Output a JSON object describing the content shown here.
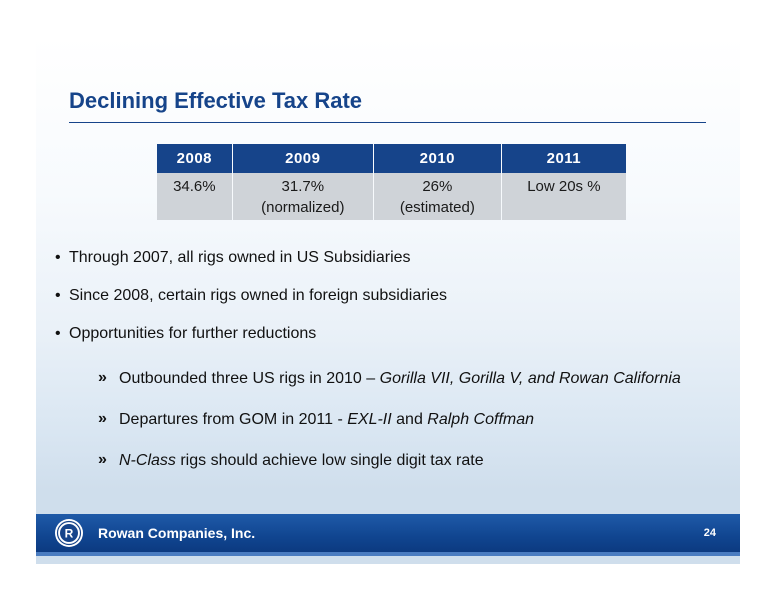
{
  "slide": {
    "title": "Declining Effective Tax Rate"
  },
  "table": {
    "headers": [
      "2008",
      "2009",
      "2010",
      "2011"
    ],
    "cells": [
      [
        "34.6%",
        ""
      ],
      [
        "31.7%",
        "(normalized)"
      ],
      [
        "26%",
        "(estimated)"
      ],
      [
        "Low 20s %",
        ""
      ]
    ]
  },
  "bullets": [
    "Through 2007, all rigs owned in US Subsidiaries",
    "Since 2008, certain rigs owned in foreign subsidiaries",
    "Opportunities for further reductions"
  ],
  "sub_bullets": {
    "arrow": "»",
    "item1": {
      "text": "Outbounded three US rigs in 2010 – ",
      "italic": "Gorilla VII, Gorilla V, and Rowan California"
    },
    "item2": {
      "text_a": "Departures from GOM in 2011 - ",
      "italic_a": "EXL-II",
      "text_b": " and ",
      "italic_b": "Ralph Coffman"
    },
    "item3": {
      "italic": "N-Class",
      "text": " rigs should achieve low single digit tax rate"
    }
  },
  "footer": {
    "company": "Rowan Companies, Inc.",
    "logo_letter": "R",
    "page_number": "24",
    "colors": {
      "brand_blue": "#16448a",
      "footer_blue": "#104590"
    }
  }
}
